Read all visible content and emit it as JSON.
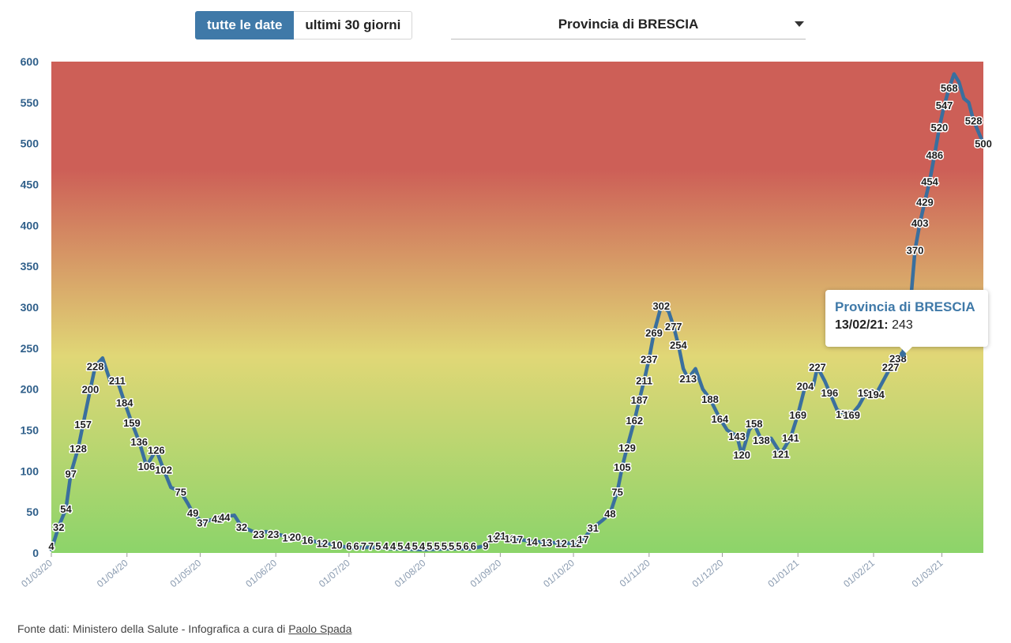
{
  "controls": {
    "all_dates_label": "tutte le date",
    "last30_label": "ultimi 30 giorni",
    "province_selected": "Provincia di BRESCIA"
  },
  "tooltip": {
    "title": "Provincia di BRESCIA",
    "date": "13/02/21:",
    "value": "243"
  },
  "footer": {
    "source_text": "Fonte dati: Ministero della Salute - Infografica a cura di",
    "author": "Paolo Spada"
  },
  "colors": {
    "line": "#3a6f9e",
    "axis_labels": "#2f5f8a",
    "gradient_top": "#cd5f57",
    "gradient_mid": "#e0d776",
    "gradient_bottom": "#8cd46a"
  },
  "chart_data": {
    "type": "line",
    "ylim": [
      0,
      600
    ],
    "yticks": [
      0,
      50,
      100,
      150,
      200,
      250,
      300,
      350,
      400,
      450,
      500,
      550,
      600
    ],
    "xlim": [
      "2020-03-01",
      "2021-03-18"
    ],
    "xticks": [
      "01/03/20",
      "01/04/20",
      "01/05/20",
      "01/06/20",
      "01/07/20",
      "01/08/20",
      "01/09/20",
      "01/10/20",
      "01/11/20",
      "01/12/20",
      "01/01/21",
      "01/02/21",
      "01/03/21"
    ],
    "xtick_dates": [
      "2020-03-01",
      "2020-04-01",
      "2020-05-01",
      "2020-06-01",
      "2020-07-01",
      "2020-08-01",
      "2020-09-01",
      "2020-10-01",
      "2020-11-01",
      "2020-12-01",
      "2021-01-01",
      "2021-02-01",
      "2021-03-01"
    ],
    "series": [
      {
        "points": [
          [
            "2020-03-01",
            4
          ],
          [
            "2020-03-04",
            32
          ],
          [
            "2020-03-07",
            54
          ],
          [
            "2020-03-09",
            97
          ],
          [
            "2020-03-12",
            128
          ],
          [
            "2020-03-14",
            157
          ],
          [
            "2020-03-17",
            200
          ],
          [
            "2020-03-19",
            228
          ],
          [
            "2020-03-22",
            238
          ],
          [
            "2020-03-25",
            211
          ],
          [
            "2020-03-28",
            211
          ],
          [
            "2020-03-31",
            184
          ],
          [
            "2020-04-03",
            159
          ],
          [
            "2020-04-06",
            136
          ],
          [
            "2020-04-09",
            106
          ],
          [
            "2020-04-13",
            126
          ],
          [
            "2020-04-16",
            102
          ],
          [
            "2020-04-19",
            80
          ],
          [
            "2020-04-23",
            75
          ],
          [
            "2020-04-26",
            60
          ],
          [
            "2020-04-28",
            49
          ],
          [
            "2020-05-02",
            37
          ],
          [
            "2020-05-05",
            40
          ],
          [
            "2020-05-08",
            42
          ],
          [
            "2020-05-11",
            44
          ],
          [
            "2020-05-15",
            46
          ],
          [
            "2020-05-18",
            32
          ],
          [
            "2020-05-22",
            27
          ],
          [
            "2020-05-25",
            23
          ],
          [
            "2020-05-28",
            26
          ],
          [
            "2020-05-31",
            23
          ],
          [
            "2020-06-03",
            22
          ],
          [
            "2020-06-06",
            19
          ],
          [
            "2020-06-09",
            20
          ],
          [
            "2020-06-14",
            16
          ],
          [
            "2020-06-20",
            12
          ],
          [
            "2020-06-26",
            10
          ],
          [
            "2020-07-01",
            6
          ],
          [
            "2020-07-10",
            7
          ],
          [
            "2020-07-20",
            5
          ],
          [
            "2020-08-01",
            4
          ],
          [
            "2020-08-10",
            5
          ],
          [
            "2020-08-20",
            5
          ],
          [
            "2020-08-26",
            9
          ],
          [
            "2020-08-29",
            18
          ],
          [
            "2020-09-01",
            21
          ],
          [
            "2020-09-05",
            18
          ],
          [
            "2020-09-08",
            17
          ],
          [
            "2020-09-14",
            14
          ],
          [
            "2020-09-20",
            13
          ],
          [
            "2020-09-26",
            12
          ],
          [
            "2020-10-02",
            12
          ],
          [
            "2020-10-05",
            17
          ],
          [
            "2020-10-09",
            31
          ],
          [
            "2020-10-13",
            40
          ],
          [
            "2020-10-16",
            48
          ],
          [
            "2020-10-19",
            75
          ],
          [
            "2020-10-21",
            105
          ],
          [
            "2020-10-23",
            129
          ],
          [
            "2020-10-26",
            162
          ],
          [
            "2020-10-28",
            187
          ],
          [
            "2020-10-30",
            211
          ],
          [
            "2020-11-01",
            237
          ],
          [
            "2020-11-03",
            269
          ],
          [
            "2020-11-06",
            302
          ],
          [
            "2020-11-09",
            295
          ],
          [
            "2020-11-11",
            277
          ],
          [
            "2020-11-13",
            254
          ],
          [
            "2020-11-15",
            225
          ],
          [
            "2020-11-17",
            213
          ],
          [
            "2020-11-20",
            225
          ],
          [
            "2020-11-23",
            200
          ],
          [
            "2020-11-26",
            188
          ],
          [
            "2020-11-30",
            164
          ],
          [
            "2020-12-03",
            150
          ],
          [
            "2020-12-07",
            143
          ],
          [
            "2020-12-09",
            120
          ],
          [
            "2020-12-12",
            150
          ],
          [
            "2020-12-14",
            158
          ],
          [
            "2020-12-17",
            138
          ],
          [
            "2020-12-21",
            140
          ],
          [
            "2020-12-25",
            121
          ],
          [
            "2020-12-29",
            141
          ],
          [
            "2021-01-01",
            169
          ],
          [
            "2021-01-04",
            204
          ],
          [
            "2021-01-07",
            200
          ],
          [
            "2021-01-09",
            227
          ],
          [
            "2021-01-12",
            210
          ],
          [
            "2021-01-14",
            196
          ],
          [
            "2021-01-17",
            175
          ],
          [
            "2021-01-20",
            170
          ],
          [
            "2021-01-23",
            169
          ],
          [
            "2021-01-26",
            180
          ],
          [
            "2021-01-29",
            196
          ],
          [
            "2021-02-02",
            194
          ],
          [
            "2021-02-08",
            227
          ],
          [
            "2021-02-11",
            238
          ],
          [
            "2021-02-13",
            243
          ],
          [
            "2021-02-16",
            300
          ],
          [
            "2021-02-18",
            370
          ],
          [
            "2021-02-20",
            403
          ],
          [
            "2021-02-22",
            429
          ],
          [
            "2021-02-24",
            454
          ],
          [
            "2021-02-26",
            486
          ],
          [
            "2021-02-28",
            520
          ],
          [
            "2021-03-02",
            547
          ],
          [
            "2021-03-04",
            568
          ],
          [
            "2021-03-06",
            585
          ],
          [
            "2021-03-08",
            575
          ],
          [
            "2021-03-10",
            555
          ],
          [
            "2021-03-12",
            550
          ],
          [
            "2021-03-14",
            528
          ],
          [
            "2021-03-18",
            500
          ]
        ]
      }
    ],
    "data_labels": [
      [
        "2020-03-01",
        4,
        "4"
      ],
      [
        "2020-03-04",
        32,
        "32"
      ],
      [
        "2020-03-07",
        54,
        "54"
      ],
      [
        "2020-03-09",
        97,
        "97"
      ],
      [
        "2020-03-12",
        128,
        "128"
      ],
      [
        "2020-03-14",
        157,
        "157"
      ],
      [
        "2020-03-17",
        200,
        "200"
      ],
      [
        "2020-03-19",
        228,
        "228"
      ],
      [
        "2020-03-28",
        211,
        "211"
      ],
      [
        "2020-03-31",
        184,
        "184"
      ],
      [
        "2020-04-03",
        159,
        "159"
      ],
      [
        "2020-04-06",
        136,
        "136"
      ],
      [
        "2020-04-09",
        106,
        "106"
      ],
      [
        "2020-04-13",
        126,
        "126"
      ],
      [
        "2020-04-16",
        102,
        "102"
      ],
      [
        "2020-04-23",
        75,
        "75"
      ],
      [
        "2020-04-28",
        49,
        "49"
      ],
      [
        "2020-05-02",
        37,
        "37"
      ],
      [
        "2020-05-08",
        42,
        "42"
      ],
      [
        "2020-05-11",
        44,
        "44"
      ],
      [
        "2020-05-18",
        32,
        "32"
      ],
      [
        "2020-05-25",
        23,
        "23"
      ],
      [
        "2020-05-31",
        23,
        "23"
      ],
      [
        "2020-06-06",
        19,
        "19"
      ],
      [
        "2020-06-09",
        20,
        "20"
      ],
      [
        "2020-06-14",
        16,
        "16"
      ],
      [
        "2020-06-20",
        12,
        "12"
      ],
      [
        "2020-06-26",
        10,
        "10"
      ],
      [
        "2020-07-01",
        6,
        "6"
      ],
      [
        "2020-07-04",
        6,
        "6"
      ],
      [
        "2020-07-07",
        7,
        "7"
      ],
      [
        "2020-07-10",
        7,
        "7"
      ],
      [
        "2020-07-13",
        5,
        "5"
      ],
      [
        "2020-07-16",
        4,
        "4"
      ],
      [
        "2020-07-19",
        4,
        "4"
      ],
      [
        "2020-07-22",
        5,
        "5"
      ],
      [
        "2020-07-25",
        4,
        "4"
      ],
      [
        "2020-07-28",
        5,
        "5"
      ],
      [
        "2020-07-31",
        4,
        "4"
      ],
      [
        "2020-08-03",
        5,
        "5"
      ],
      [
        "2020-08-06",
        5,
        "5"
      ],
      [
        "2020-08-09",
        5,
        "5"
      ],
      [
        "2020-08-12",
        5,
        "5"
      ],
      [
        "2020-08-15",
        5,
        "5"
      ],
      [
        "2020-08-18",
        6,
        "6"
      ],
      [
        "2020-08-21",
        6,
        "6"
      ],
      [
        "2020-08-26",
        9,
        "9"
      ],
      [
        "2020-08-29",
        18,
        "18"
      ],
      [
        "2020-09-01",
        21,
        "21"
      ],
      [
        "2020-09-05",
        18,
        "18"
      ],
      [
        "2020-09-08",
        17,
        "17"
      ],
      [
        "2020-09-14",
        14,
        "14"
      ],
      [
        "2020-09-20",
        13,
        "13"
      ],
      [
        "2020-09-26",
        12,
        "12"
      ],
      [
        "2020-10-02",
        12,
        "12"
      ],
      [
        "2020-10-05",
        17,
        "17"
      ],
      [
        "2020-10-09",
        31,
        "31"
      ],
      [
        "2020-10-16",
        48,
        "48"
      ],
      [
        "2020-10-19",
        75,
        "75"
      ],
      [
        "2020-10-21",
        105,
        "105"
      ],
      [
        "2020-10-23",
        129,
        "129"
      ],
      [
        "2020-10-26",
        162,
        "162"
      ],
      [
        "2020-10-28",
        187,
        "187"
      ],
      [
        "2020-10-30",
        211,
        "211"
      ],
      [
        "2020-11-01",
        237,
        "237"
      ],
      [
        "2020-11-03",
        269,
        "269"
      ],
      [
        "2020-11-06",
        302,
        "302"
      ],
      [
        "2020-11-11",
        277,
        "277"
      ],
      [
        "2020-11-13",
        254,
        "254"
      ],
      [
        "2020-11-17",
        213,
        "213"
      ],
      [
        "2020-11-26",
        188,
        "188"
      ],
      [
        "2020-11-30",
        164,
        "164"
      ],
      [
        "2020-12-07",
        143,
        "143"
      ],
      [
        "2020-12-09",
        120,
        "120"
      ],
      [
        "2020-12-14",
        158,
        "158"
      ],
      [
        "2020-12-17",
        138,
        "138"
      ],
      [
        "2020-12-25",
        121,
        "121"
      ],
      [
        "2020-12-29",
        141,
        "141"
      ],
      [
        "2021-01-01",
        169,
        "169"
      ],
      [
        "2021-01-04",
        204,
        "204"
      ],
      [
        "2021-01-09",
        227,
        "227"
      ],
      [
        "2021-01-14",
        196,
        "196"
      ],
      [
        "2021-01-20",
        170,
        "170"
      ],
      [
        "2021-01-23",
        169,
        "169"
      ],
      [
        "2021-01-29",
        196,
        "196"
      ],
      [
        "2021-02-02",
        194,
        "194"
      ],
      [
        "2021-02-08",
        227,
        "227"
      ],
      [
        "2021-02-11",
        238,
        "238"
      ],
      [
        "2021-02-18",
        370,
        "370"
      ],
      [
        "2021-02-20",
        403,
        "403"
      ],
      [
        "2021-02-22",
        429,
        "429"
      ],
      [
        "2021-02-24",
        454,
        "454"
      ],
      [
        "2021-02-26",
        486,
        "486"
      ],
      [
        "2021-02-28",
        520,
        "520"
      ],
      [
        "2021-03-02",
        547,
        "547"
      ],
      [
        "2021-03-04",
        568,
        "568"
      ],
      [
        "2021-03-14",
        528,
        "528"
      ],
      [
        "2021-03-18",
        500,
        "500"
      ]
    ],
    "highlight_point": [
      "2021-02-13",
      243
    ],
    "grid": false,
    "legend": "none"
  }
}
